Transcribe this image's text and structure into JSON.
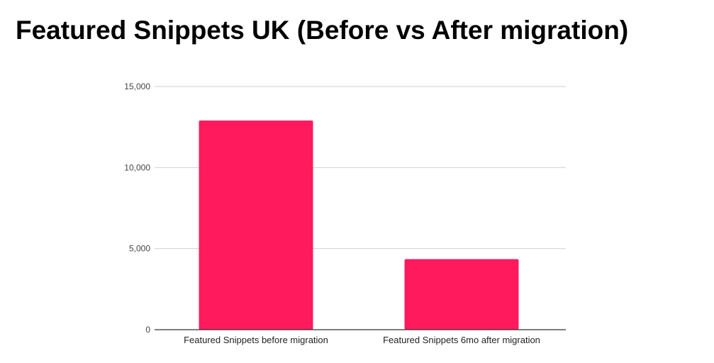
{
  "chart_data": {
    "type": "bar",
    "title": "Featured Snippets UK (Before vs After migration)",
    "categories": [
      "Featured Snippets before migration",
      "Featured Snippets 6mo after migration"
    ],
    "series": [
      {
        "values": [
          12900,
          4350
        ]
      }
    ],
    "xlabel": "",
    "ylabel": "",
    "ylim": [
      0,
      15000
    ],
    "yticks": [
      0,
      5000,
      10000,
      15000
    ],
    "ytick_labels": [
      "0",
      "5,000",
      "10,000",
      "15,000"
    ],
    "grid": true,
    "legend": "none",
    "bar_color": "#ff1a5e",
    "grid_color": "#d0d0d0",
    "axis_color": "#333333"
  }
}
